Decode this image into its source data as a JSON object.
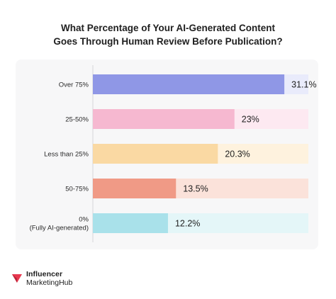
{
  "chart_data": {
    "type": "bar",
    "orientation": "horizontal",
    "title_lines": [
      "What Percentage of Your AI-Generated Content",
      "Goes Through Human Review Before Publication?"
    ],
    "categories": [
      [
        "Over 75%"
      ],
      [
        "25-50%"
      ],
      [
        "Less than 25%"
      ],
      [
        "50-75%"
      ],
      [
        "0%",
        "(Fully AI-generated)"
      ]
    ],
    "values": [
      31.1,
      23,
      20.3,
      13.5,
      12.2
    ],
    "value_labels": [
      "31.1%",
      "23%",
      "20.3%",
      "13.5%",
      "12.2%"
    ],
    "xlim": [
      0,
      35
    ],
    "grid": false,
    "legend": "none",
    "colors": [
      "#8f97e6",
      "#f6b8d0",
      "#fad9a3",
      "#f09a86",
      "#a9e1ea"
    ],
    "track_colors": [
      "#e9ebfb",
      "#fde9f1",
      "#fef2de",
      "#fbe2da",
      "#e4f6f8"
    ]
  },
  "brand": {
    "line1": "Influencer",
    "line2": "MarketingHub",
    "icon": "influencer-marketinghub-logo-icon",
    "color": "#e8384f"
  }
}
